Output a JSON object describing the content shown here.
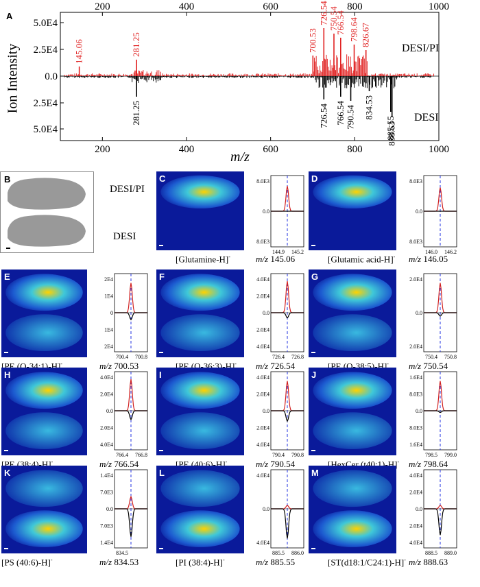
{
  "panelA": {
    "label": "A",
    "ylabel": "Ion Intensity",
    "xlabel": "m/z",
    "yticks": [
      "5.0E4",
      "2.5E4",
      "0.0",
      "2.5E4",
      "5.0E4"
    ],
    "xticks": [
      "200",
      "400",
      "600",
      "800",
      "1000"
    ],
    "legend_top": "DESI/PI",
    "legend_bottom": "DESI",
    "peaks_top": [
      "145.06",
      "281.25",
      "700.53",
      "726.54",
      "750.54",
      "766.54",
      "798.64",
      "826.67"
    ],
    "peaks_bottom": [
      "281.25",
      "726.54",
      "766.54",
      "790.54",
      "834.53",
      "885.55",
      "888.63"
    ],
    "colors": {
      "top": "#e02020",
      "bottom": "#000000"
    }
  },
  "panelB": {
    "label": "B",
    "top": "DESI/PI",
    "bottom": "DESI"
  },
  "panels": [
    {
      "label": "C",
      "name": "[Glutamine-H]",
      "mz": "145.06",
      "yt": [
        "8.0E3",
        "0.0",
        "8.0E3"
      ],
      "xt": [
        "144.9",
        "145.2"
      ]
    },
    {
      "label": "D",
      "name": "[Glutamic acid-H]",
      "mz": "146.05",
      "yt": [
        "8.0E3",
        "0.0",
        "8.0E3"
      ],
      "xt": [
        "146.0",
        "146.2"
      ]
    },
    {
      "label": "E",
      "name": "[PE (O-34:1)-H]",
      "mz": "700.53",
      "yt": [
        "2E4",
        "1E4",
        "0",
        "1E4",
        "2E4"
      ],
      "xt": [
        "700.4",
        "700.8"
      ]
    },
    {
      "label": "F",
      "name": "[PE (O-36:3)-H]",
      "mz": "726.54",
      "yt": [
        "4.0E4",
        "2.0E4",
        "0.0",
        "2.0E4",
        "4.0E4"
      ],
      "xt": [
        "726.4",
        "726.8"
      ]
    },
    {
      "label": "G",
      "name": "[PE (O-38:5)-H]",
      "mz": "750.54",
      "yt": [
        "2.0E4",
        "0.0",
        "2.0E4"
      ],
      "xt": [
        "750.4",
        "750.8"
      ]
    },
    {
      "label": "H",
      "name": "[PE (38:4)-H]",
      "mz": "766.54",
      "yt": [
        "4.0E4",
        "2.0E4",
        "0.0",
        "2.0E4",
        "4.0E4"
      ],
      "xt": [
        "766.4",
        "766.8"
      ]
    },
    {
      "label": "I",
      "name": "[PE (40:6)-H]",
      "mz": "790.54",
      "yt": [
        "4.0E4",
        "2.0E4",
        "0.0",
        "2.0E4",
        "4.0E4"
      ],
      "xt": [
        "790.4",
        "790.8"
      ]
    },
    {
      "label": "J",
      "name": "[HexCer (t40:1)-H]",
      "mz": "798.64",
      "yt": [
        "1.6E4",
        "8.0E3",
        "0.0",
        "8.0E3",
        "1.6E4"
      ],
      "xt": [
        "798.5",
        "799.0"
      ]
    },
    {
      "label": "K",
      "name": "[PS (40:6)-H]",
      "mz": "834.53",
      "yt": [
        "1.4E4",
        "7.0E3",
        "0.0",
        "7.0E3",
        "1.4E4"
      ],
      "xt": [
        "834.5",
        ""
      ]
    },
    {
      "label": "L",
      "name": "[PI (38:4)-H]",
      "mz": "885.55",
      "yt": [
        "4.0E4",
        "0.0",
        "4.0E4"
      ],
      "xt": [
        "885.5",
        "886.0"
      ]
    },
    {
      "label": "M",
      "name": "[ST(d18:1/C24:1)-H]",
      "mz": "888.63",
      "yt": [
        "4.0E4",
        "2.0E4",
        "0.0",
        "2.0E4",
        "4.0E4"
      ],
      "xt": [
        "888.5",
        "889.0"
      ]
    }
  ],
  "mz_prefix": "m/z",
  "ion_sign": "-"
}
